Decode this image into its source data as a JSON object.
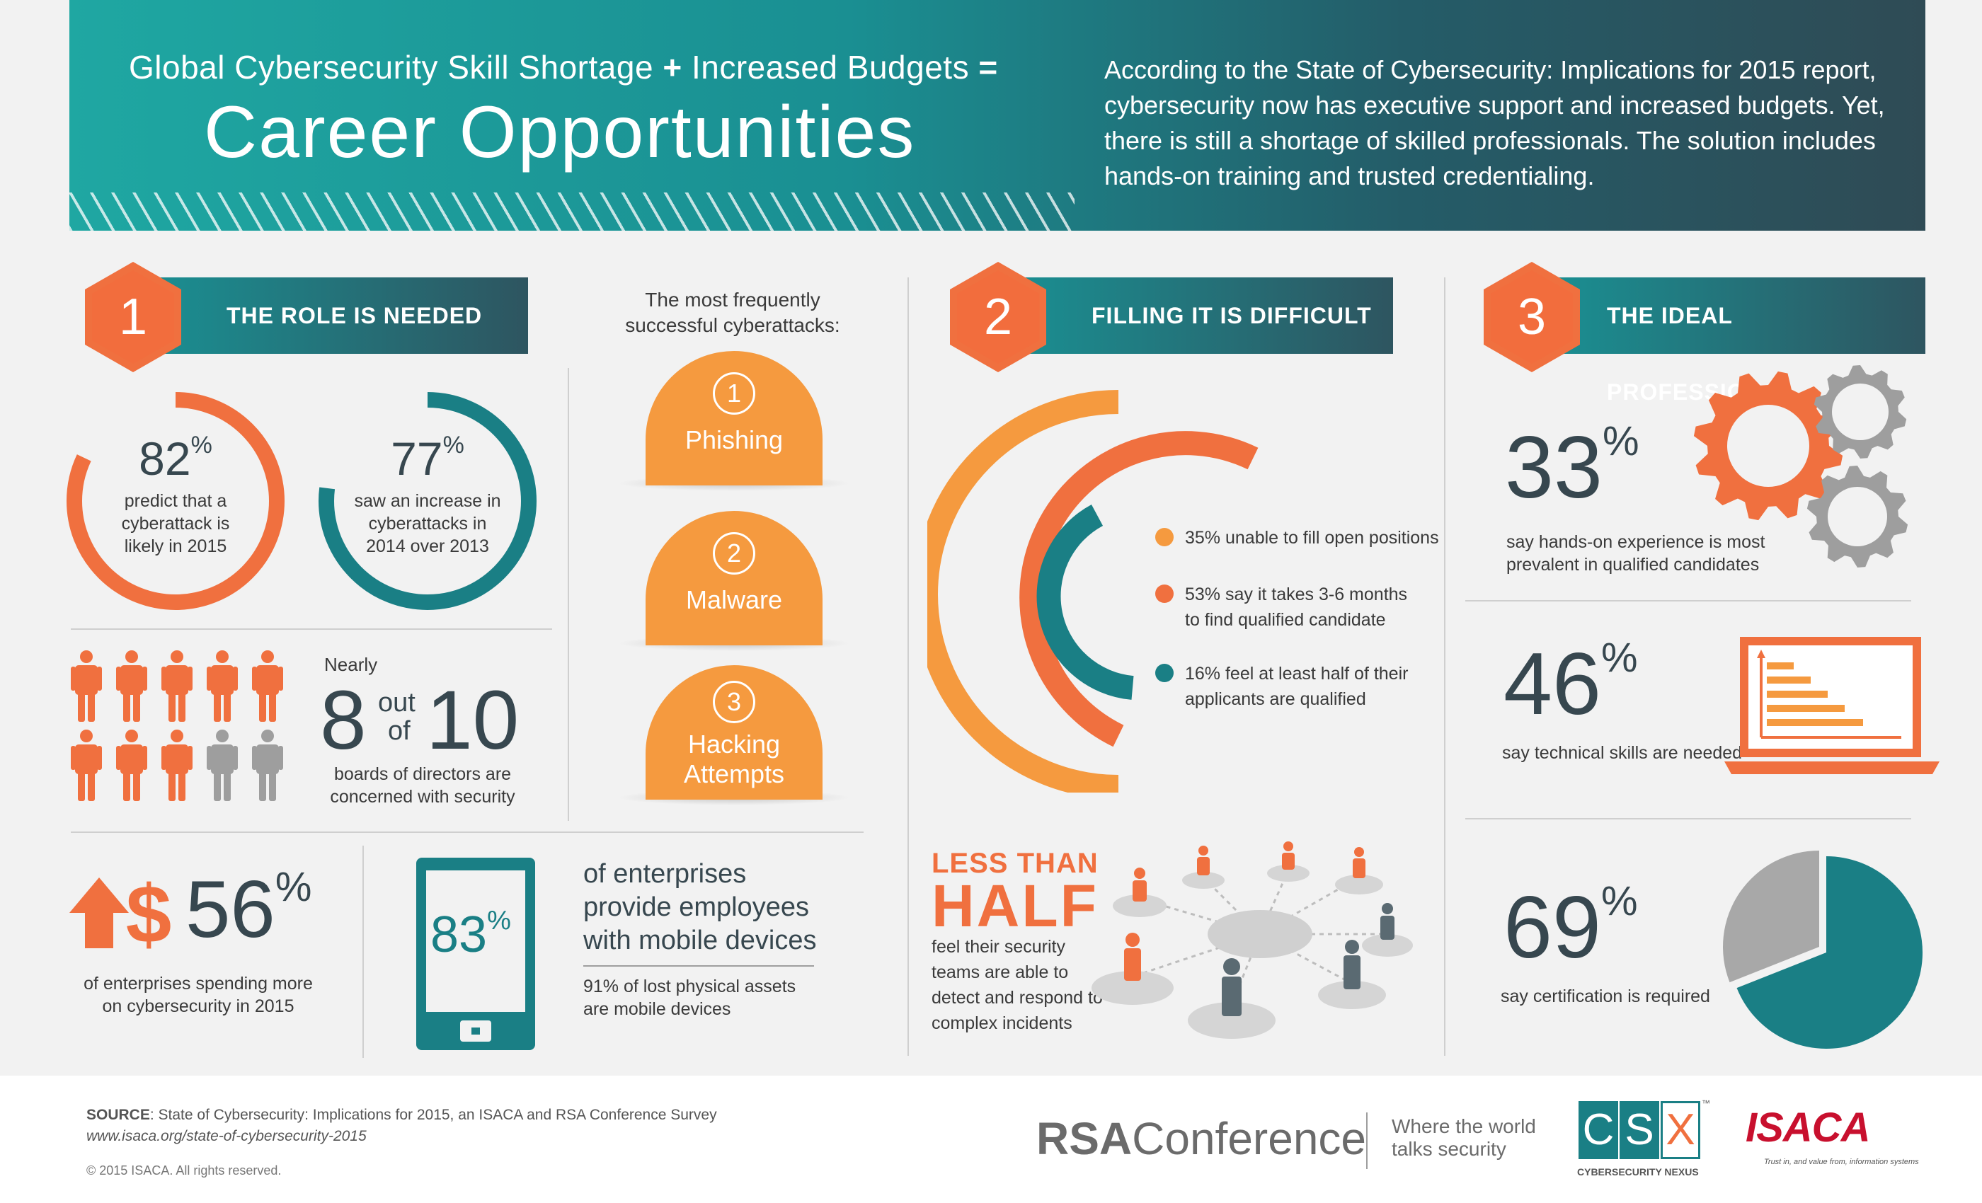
{
  "colors": {
    "orange": "#f0703f",
    "light_orange": "#f59a3f",
    "teal": "#1a7f85",
    "dark_slate": "#37474f",
    "gray": "#9e9e9e"
  },
  "header": {
    "title_part1": "Global Cybersecurity Skill Shortage",
    "title_plus": "+",
    "title_part2": "Increased Budgets",
    "title_equals": "=",
    "title_big": "Career Opportunities",
    "description": "According to the State of Cybersecurity: Implications for 2015 report, cybersecurity now has executive support and increased budgets. Yet, there is still a shortage of skilled professionals. The solution includes hands-on training and trusted credentialing."
  },
  "section1": {
    "number": "1",
    "title": "THE ROLE IS NEEDED",
    "stat_82": {
      "value": "82",
      "unit": "%",
      "caption": "predict that a cyberattack is likely in 2015",
      "fraction": 0.82
    },
    "stat_77": {
      "value": "77",
      "unit": "%",
      "caption": "saw an increase in cyberattacks in 2014 over 2013",
      "fraction": 0.77
    },
    "boards": {
      "nearly": "Nearly",
      "eight": "8",
      "out": "out",
      "of": "of",
      "ten": "10",
      "caption": "boards of directors are concerned with security",
      "highlighted": 8,
      "total": 10
    },
    "spending": {
      "icon": "dollar-up-arrow-icon",
      "value": "56",
      "unit": "%",
      "caption": "of enterprises spending more on cybersecurity in 2015"
    },
    "mobile": {
      "icon": "mobile-device-icon",
      "value": "83",
      "unit": "%",
      "headline": "of enterprises provide employees with mobile devices",
      "caption": "91% of lost physical assets are mobile devices"
    }
  },
  "attacks": {
    "heading": "The most frequently successful cyberattacks:",
    "items": [
      {
        "num": "1",
        "label": "Phishing"
      },
      {
        "num": "2",
        "label": "Malware"
      },
      {
        "num": "3",
        "label_line1": "Hacking",
        "label_line2": "Attempts"
      }
    ]
  },
  "section2": {
    "number": "2",
    "title": "FILLING IT IS DIFFICULT",
    "legend": [
      {
        "text": "35% unable to fill open positions",
        "color": "#f59a3f",
        "value": 35
      },
      {
        "text_line1": "53% say it takes 3-6 months",
        "text_line2": "to find qualified candidate",
        "color": "#f0703f",
        "value": 53
      },
      {
        "text_line1": "16% feel at least half of their",
        "text_line2": "applicants are qualified",
        "color": "#1a7f85",
        "value": 16
      }
    ],
    "less_than": "LESS THAN",
    "half": "HALF",
    "half_caption": "feel their security teams are able to detect and respond to complex incidents"
  },
  "section3": {
    "number": "3",
    "title": "THE IDEAL PROFESSIONAL",
    "stat_33": {
      "value": "33",
      "unit": "%",
      "caption": "say hands-on experience is most prevalent in qualified candidates"
    },
    "stat_46": {
      "value": "46",
      "unit": "%",
      "caption": "say technical skills are needed"
    },
    "stat_69": {
      "value": "69",
      "unit": "%",
      "caption": "say certification is required",
      "fraction": 0.69
    }
  },
  "footer": {
    "source_label": "SOURCE",
    "source_text": ": State of Cybersecurity: Implications for 2015, an ISACA and RSA Conference Survey",
    "url": "www.isaca.org/state-of-cybersecurity-2015",
    "copyright": "© 2015 ISACA. All rights reserved.",
    "rsa_bold": "RSA",
    "rsa_light": "Conference",
    "rsa_tagline_line1": "Where the world",
    "rsa_tagline_line2": "talks security",
    "csx_c": "C",
    "csx_s": "S",
    "csx_x": "X",
    "csx_tm": "™",
    "csx_caption": "CYBERSECURITY NEXUS",
    "isaca_logo": "ISACA",
    "isaca_tagline": "Trust in, and value from, information systems"
  }
}
